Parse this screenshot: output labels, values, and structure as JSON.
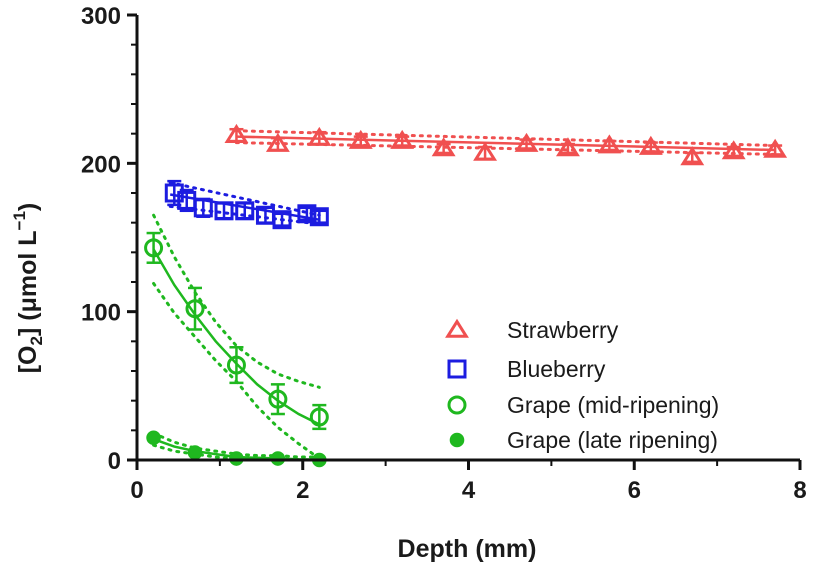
{
  "chart_data": {
    "type": "scatter",
    "title": "",
    "xlabel": "Depth (mm)",
    "ylabel": "[O2] (μmol L−1)",
    "ylabel_parts": {
      "open": "[O",
      "sub": "2",
      "mid": "] (μmol L",
      "sup": "−1",
      "close": ")"
    },
    "xlim": [
      0,
      8
    ],
    "ylim": [
      0,
      300
    ],
    "xticks": [
      0,
      2,
      4,
      6,
      8
    ],
    "yticks": [
      0,
      100,
      200,
      300
    ],
    "xtick_labels": [
      "0",
      "2",
      "4",
      "6",
      "8"
    ],
    "ytick_labels": [
      "0",
      "100",
      "200",
      "300"
    ],
    "grid": false,
    "legend_position": "lower-right",
    "series": [
      {
        "name": "Strawberry",
        "marker": "open-triangle",
        "color": "#f05050",
        "x": [
          1.2,
          1.7,
          2.2,
          2.7,
          3.2,
          3.7,
          4.2,
          4.7,
          5.2,
          5.7,
          6.2,
          6.7,
          7.2,
          7.7
        ],
        "y": [
          219,
          213,
          217,
          215,
          215,
          210,
          207,
          213,
          210,
          212,
          211,
          204,
          208,
          209
        ],
        "yerr": [
          4,
          4,
          4,
          3,
          3,
          3,
          4,
          3,
          3,
          3,
          3,
          3,
          3,
          3
        ],
        "fit": {
          "x": [
            1.2,
            7.7
          ],
          "y": [
            218,
            209
          ]
        },
        "band": {
          "x": [
            1.2,
            7.7
          ],
          "upper": [
            222,
            212
          ],
          "lower": [
            214,
            206
          ]
        }
      },
      {
        "name": "Blueberry",
        "marker": "open-square",
        "color": "#1c1ce0",
        "x": [
          0.45,
          0.6,
          0.8,
          1.05,
          1.3,
          1.55,
          1.75,
          2.05,
          2.2
        ],
        "y": [
          180,
          175,
          170,
          168,
          168,
          165,
          162,
          166,
          164
        ],
        "yerr": [
          8,
          7,
          6,
          5,
          5,
          5,
          4,
          4,
          4
        ],
        "fit": {
          "x": [
            0.4,
            2.2
          ],
          "y": [
            179,
            162
          ]
        },
        "band": {
          "x": [
            0.4,
            2.2
          ],
          "upper": [
            187,
            165
          ],
          "lower": [
            171,
            159
          ]
        }
      },
      {
        "name": "Grape (mid-ripening)",
        "marker": "open-circle",
        "color": "#1fb81f",
        "x": [
          0.2,
          0.7,
          1.2,
          1.7,
          2.2
        ],
        "y": [
          143,
          102,
          64,
          41,
          29
        ],
        "yerr": [
          10,
          14,
          12,
          10,
          8
        ],
        "fit": {
          "x": [
            0.2,
            0.45,
            0.7,
            0.95,
            1.2,
            1.45,
            1.7,
            1.95,
            2.2
          ],
          "y": [
            142,
            118,
            98,
            80,
            65,
            51,
            40,
            31,
            24
          ]
        },
        "band": {
          "x": [
            0.2,
            0.45,
            0.7,
            0.95,
            1.2,
            1.45,
            1.7,
            1.95,
            2.2
          ],
          "upper": [
            165,
            137,
            113,
            93,
            77,
            66,
            58,
            53,
            49
          ],
          "lower": [
            119,
            99,
            83,
            67,
            53,
            36,
            22,
            11,
            1
          ]
        }
      },
      {
        "name": "Grape (late ripening)",
        "marker": "filled-circle",
        "color": "#1fb81f",
        "x": [
          0.2,
          0.7,
          1.2,
          1.7,
          2.2
        ],
        "y": [
          15,
          5,
          1,
          1,
          0
        ],
        "yerr": [
          0,
          0,
          0,
          0,
          0
        ],
        "fit": {
          "x": [
            0.2,
            0.45,
            0.7,
            0.95,
            1.2,
            1.45,
            1.7,
            1.95,
            2.2
          ],
          "y": [
            14,
            9,
            6,
            4,
            2,
            1.5,
            1,
            0.5,
            0.3
          ]
        },
        "band": {
          "x": [
            0.2,
            0.45,
            0.7,
            0.95,
            1.2,
            1.45,
            1.7,
            1.95,
            2.2
          ],
          "upper": [
            18,
            12,
            8,
            6,
            4,
            3,
            3,
            2,
            2
          ],
          "lower": [
            10,
            6,
            4,
            2,
            0.5,
            0,
            0,
            0,
            0
          ]
        }
      }
    ]
  }
}
